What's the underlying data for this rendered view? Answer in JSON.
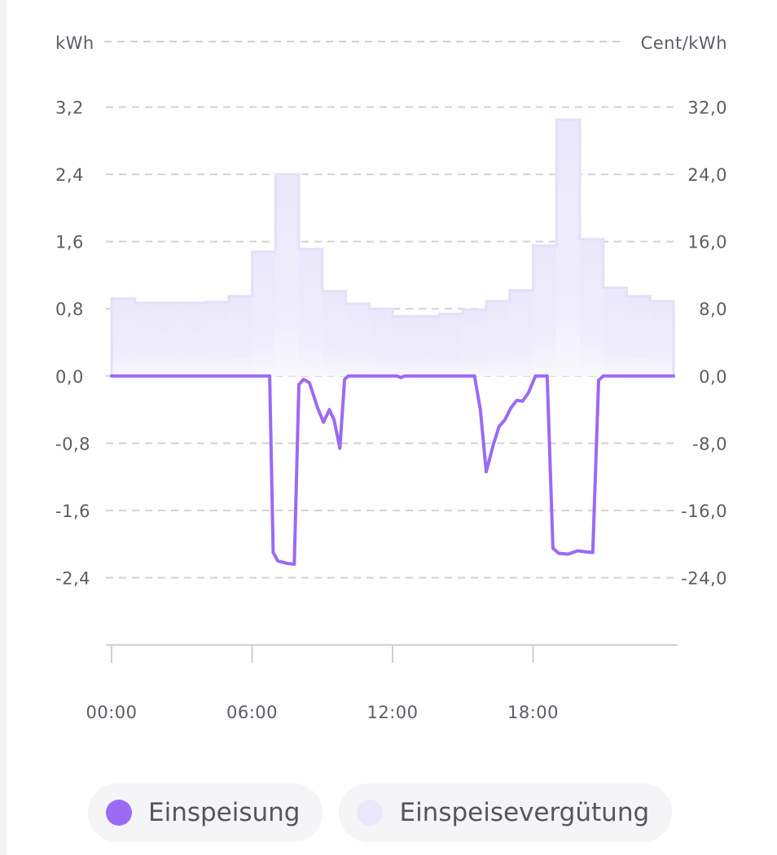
{
  "chart_data": {
    "type": "bar+line",
    "y_left_unit": "kWh",
    "y_right_unit": "Cent/kWh",
    "y_left_ticks": [
      "3,2",
      "2,4",
      "1,6",
      "0,8",
      "0,0",
      "-0,8",
      "-1,6",
      "-2,4"
    ],
    "y_right_ticks": [
      "32,0",
      "24,0",
      "16,0",
      "8,0",
      "0,0",
      "-8,0",
      "-16,0",
      "-24,0"
    ],
    "y_left_range": [
      -3.2,
      4.0
    ],
    "y_right_range": [
      -32.0,
      40.0
    ],
    "x_ticks": [
      "00:00",
      "06:00",
      "12:00",
      "18:00"
    ],
    "x_range_hours": [
      0,
      24
    ],
    "grid": true,
    "legend_position": "bottom",
    "series": [
      {
        "name": "Einspeisung",
        "type": "line",
        "axis": "left",
        "unit": "kWh",
        "color": "#9a6af5",
        "points": [
          [
            0.0,
            0.0
          ],
          [
            6.75,
            0.0
          ],
          [
            6.9,
            -2.1
          ],
          [
            7.1,
            -2.2
          ],
          [
            7.5,
            -2.23
          ],
          [
            7.8,
            -2.24
          ],
          [
            8.0,
            -0.1
          ],
          [
            8.2,
            -0.04
          ],
          [
            8.45,
            -0.08
          ],
          [
            8.8,
            -0.38
          ],
          [
            9.05,
            -0.55
          ],
          [
            9.3,
            -0.4
          ],
          [
            9.5,
            -0.52
          ],
          [
            9.75,
            -0.86
          ],
          [
            9.95,
            -0.04
          ],
          [
            10.1,
            0.0
          ],
          [
            12.2,
            0.0
          ],
          [
            12.35,
            -0.02
          ],
          [
            12.5,
            0.0
          ],
          [
            15.5,
            0.0
          ],
          [
            15.75,
            -0.4
          ],
          [
            16.0,
            -1.14
          ],
          [
            16.3,
            -0.82
          ],
          [
            16.55,
            -0.6
          ],
          [
            16.8,
            -0.52
          ],
          [
            17.05,
            -0.38
          ],
          [
            17.3,
            -0.29
          ],
          [
            17.55,
            -0.3
          ],
          [
            17.8,
            -0.2
          ],
          [
            18.1,
            0.0
          ],
          [
            18.6,
            0.0
          ],
          [
            18.85,
            -2.05
          ],
          [
            19.1,
            -2.11
          ],
          [
            19.5,
            -2.12
          ],
          [
            19.9,
            -2.08
          ],
          [
            20.2,
            -2.09
          ],
          [
            20.55,
            -2.1
          ],
          [
            20.8,
            -0.05
          ],
          [
            21.0,
            0.0
          ],
          [
            24.0,
            0.0
          ]
        ]
      },
      {
        "name": "Einspeisevergütung",
        "type": "bar",
        "axis": "right",
        "unit": "Cent/kWh",
        "color": "#ebe7fb",
        "bar_width_hours": 1,
        "x": [
          0,
          1,
          2,
          3,
          4,
          5,
          6,
          7,
          8,
          9,
          10,
          11,
          12,
          13,
          14,
          15,
          16,
          17,
          18,
          19,
          20,
          21,
          22,
          23
        ],
        "values": [
          9.2,
          8.7,
          8.7,
          8.7,
          8.8,
          9.5,
          14.8,
          24.0,
          15.1,
          10.1,
          8.6,
          8.0,
          7.1,
          7.1,
          7.4,
          7.9,
          8.9,
          10.2,
          15.5,
          30.5,
          16.3,
          10.5,
          9.5,
          8.9
        ]
      }
    ]
  },
  "legend": {
    "items": [
      {
        "label": "Einspeisung",
        "color": "#9a6af5"
      },
      {
        "label": "Einspeisevergütung",
        "color": "#ebe7fb"
      }
    ]
  }
}
